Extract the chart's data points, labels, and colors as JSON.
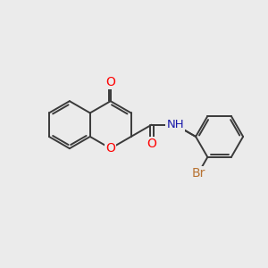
{
  "background_color": "#ebebeb",
  "bond_color": "#3a3a3a",
  "bond_width": 1.4,
  "atom_colors": {
    "O": "#ff0000",
    "N": "#1a1aaa",
    "Br": "#b87333",
    "H": "#555577"
  },
  "figsize": [
    3.0,
    3.0
  ],
  "dpi": 100
}
